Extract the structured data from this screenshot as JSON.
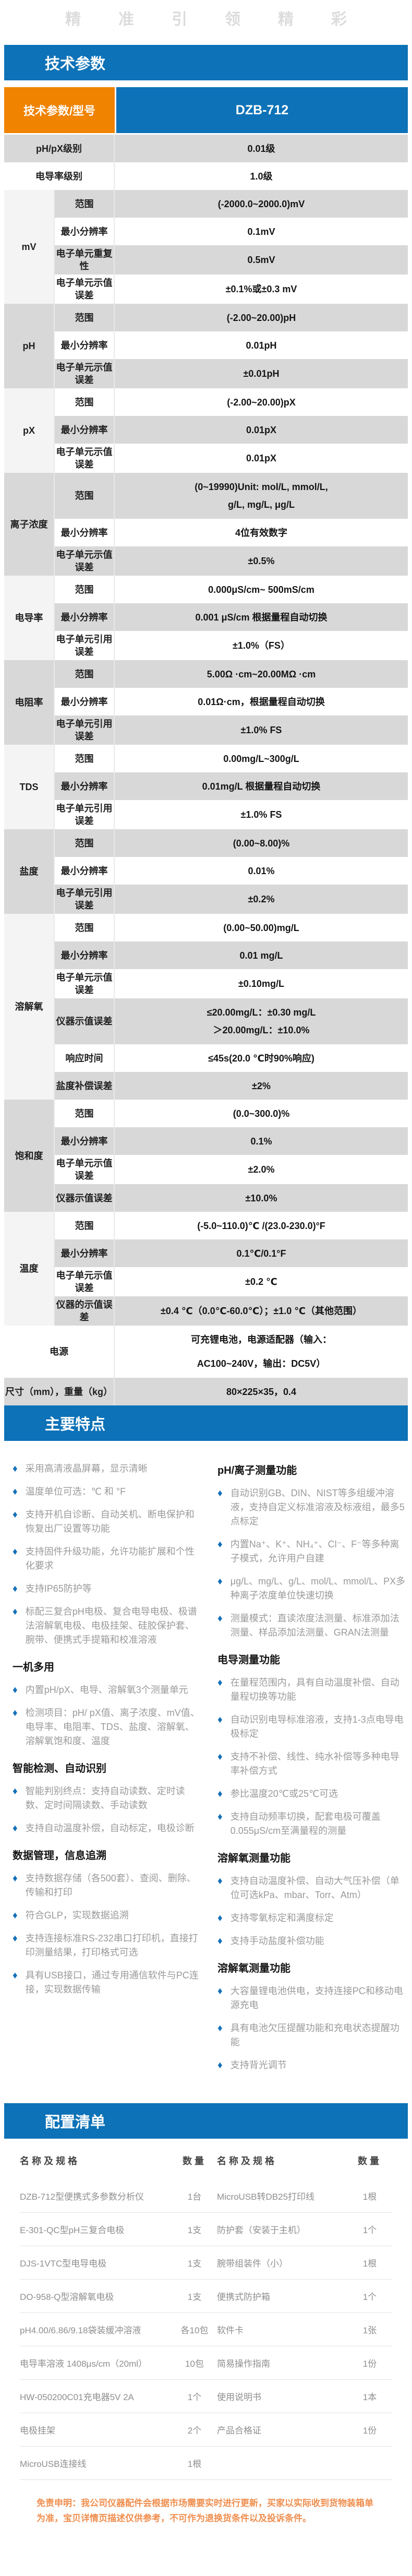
{
  "banner": "精准引领精彩",
  "sections": {
    "tech_params": "技术参数",
    "features": "主要特点",
    "config_list": "配置清单"
  },
  "spec_table": {
    "header": {
      "param_model": "技术参数/型号",
      "model": "DZB-712"
    },
    "simple_rows_top": [
      {
        "label": "pH/pX级别",
        "value": "0.01级"
      },
      {
        "label": "电导率级别",
        "value": "1.0级"
      }
    ],
    "groups": [
      {
        "name": "mV",
        "rows": [
          [
            "范围",
            "(-2000.0~2000.0)mV"
          ],
          [
            "最小分辨率",
            "0.1mV"
          ],
          [
            "电子单元重复性",
            "0.5mV"
          ],
          [
            "电子单元示值误差",
            "±0.1%或±0.3 mV"
          ]
        ]
      },
      {
        "name": "pH",
        "rows": [
          [
            "范围",
            "(-2.00~20.00)pH"
          ],
          [
            "最小分辨率",
            "0.01pH"
          ],
          [
            "电子单元示值误差",
            "±0.01pH"
          ]
        ]
      },
      {
        "name": "pX",
        "rows": [
          [
            "范围",
            "(-2.00~20.00)pX"
          ],
          [
            "最小分辨率",
            "0.01pX"
          ],
          [
            "电子单元示值误差",
            "0.01pX"
          ]
        ]
      },
      {
        "name": "离子浓度",
        "rows": [
          [
            "范围",
            "(0~19990)Unit: mol/L, mmol/L,\ng/L, mg/L, μg/L"
          ],
          [
            "最小分辨率",
            "4位有效数字"
          ],
          [
            "电子单元示值误差",
            "±0.5%"
          ]
        ]
      },
      {
        "name": "电导率",
        "rows": [
          [
            "范围",
            "0.000μS/cm~ 500mS/cm"
          ],
          [
            "最小分辨率",
            "0.001 μS/cm 根据量程自动切换"
          ],
          [
            "电子单元引用误差",
            "±1.0%（FS）"
          ]
        ]
      },
      {
        "name": "电阻率",
        "rows": [
          [
            "范围",
            "5.00Ω ·cm~20.00MΩ ·cm"
          ],
          [
            "最小分辨率",
            "0.01Ω·cm，根据量程自动切换"
          ],
          [
            "电子单元引用误差",
            "±1.0% FS"
          ]
        ]
      },
      {
        "name": "TDS",
        "rows": [
          [
            "范围",
            "0.00mg/L~300g/L"
          ],
          [
            "最小分辨率",
            "0.01mg/L 根据量程自动切换"
          ],
          [
            "电子单元引用误差",
            "±1.0% FS"
          ]
        ]
      },
      {
        "name": "盐度",
        "rows": [
          [
            "范围",
            "(0.00~8.00)%"
          ],
          [
            "最小分辨率",
            "0.01%"
          ],
          [
            "电子单元引用误差",
            "±0.2%"
          ]
        ]
      },
      {
        "name": "溶解氧",
        "rows": [
          [
            "范围",
            "(0.00~50.00)mg/L"
          ],
          [
            "最小分辨率",
            "0.01 mg/L"
          ],
          [
            "电子单元示值误差",
            "±0.10mg/L"
          ],
          [
            "仪器示值误差",
            "≤20.00mg/L：±0.30 mg/L\n＞20.00mg/L：±10.0%"
          ],
          [
            "响应时间",
            "≤45s(20.0 ℃时90%响应)"
          ],
          [
            "盐度补偿误差",
            "±2%"
          ]
        ]
      },
      {
        "name": "饱和度",
        "rows": [
          [
            "范围",
            "(0.0~300.0)%"
          ],
          [
            "最小分辨率",
            "0.1%"
          ],
          [
            "电子单元示值误差",
            "±2.0%"
          ],
          [
            "仪器示值误差",
            "±10.0%"
          ]
        ]
      },
      {
        "name": "温度",
        "rows": [
          [
            "范围",
            "(-5.0~110.0)℃ /(23.0-230.0)°F"
          ],
          [
            "最小分辨率",
            "0.1℃/0.1°F"
          ],
          [
            "电子单元示值误差",
            "±0.2 ℃"
          ],
          [
            "仪器的示值误差",
            "±0.4 ℃（0.0℃-60.0℃）；±1.0 ℃（其他范围）"
          ]
        ]
      }
    ],
    "simple_rows_bottom": [
      {
        "label": "电源",
        "value": "可充锂电池，电源适配器（输入：\nAC100~240V，输出：DC5V）"
      },
      {
        "label": "尺寸（mm），重量（kg）",
        "value": "80×225×35，0.4"
      }
    ]
  },
  "features": {
    "left": [
      {
        "type": "bullet",
        "text": "采用高清液晶屏幕，显示清晰"
      },
      {
        "type": "bullet",
        "text": "温度单位可选：℃ 和 °F"
      },
      {
        "type": "bullet",
        "text": "支持开机自诊断、自动关机、断电保护和恢复出厂设置等功能"
      },
      {
        "type": "bullet",
        "text": "支持固件升级功能，允许功能扩展和个性化要求"
      },
      {
        "type": "bullet",
        "text": "支持IP65防护等"
      },
      {
        "type": "bullet",
        "text": "标配三复合pH电极、复合电导电极、极谱法溶解氧电极、电极挂架、硅胶保护套、腕带、便携式手提箱和校准溶液"
      },
      {
        "type": "header",
        "text": "一机多用"
      },
      {
        "type": "bullet",
        "text": "内置pH/pX、电导、溶解氧3个测量单元"
      },
      {
        "type": "bullet",
        "text": "检测项目：pH/ pX值、离子浓度、mV值、电导率、电阻率、TDS、盐度、溶解氧、溶解氧饱和度、温度"
      },
      {
        "type": "header",
        "text": "智能检测、自动识别"
      },
      {
        "type": "bullet",
        "text": "智能判别终点：支持自动读数、定时读数、定时间隔读数、手动读数"
      },
      {
        "type": "bullet",
        "text": "支持自动温度补偿，自动标定，电极诊断"
      },
      {
        "type": "header",
        "text": "数据管理，信息追溯"
      },
      {
        "type": "bullet",
        "text": "支持数据存储（各500套）、查阅、删除、传输和打印"
      },
      {
        "type": "bullet",
        "text": "符合GLP，实现数据追溯"
      },
      {
        "type": "bullet",
        "text": "支持连接标准RS-232串口打印机，直接打印测量结果，打印格式可选"
      },
      {
        "type": "bullet",
        "text": "具有USB接口，通过专用通信软件与PC连接，实现数据传输"
      }
    ],
    "right": [
      {
        "type": "header",
        "text": "pH/离子测量功能"
      },
      {
        "type": "bullet",
        "text": "自动识别GB、DIN、NIST等多组缓冲溶液，支持自定义标准溶液及标液组，最多5点标定"
      },
      {
        "type": "bullet",
        "text": "内置Na⁺、K⁺、NH₄⁺、Cl⁻、F⁻等多种离子模式，允许用户自建"
      },
      {
        "type": "bullet",
        "text": "μg/L、mg/L、g/L、mol/L、mmol/L、PX多种离子浓度单位快速切换"
      },
      {
        "type": "bullet",
        "text": "测量模式：直读浓度法测量、标准添加法测量、样品添加法测量、GRAN法测量"
      },
      {
        "type": "header",
        "text": "电导测量功能"
      },
      {
        "type": "bullet",
        "text": "在量程范围内，具有自动温度补偿、自动量程切换等功能"
      },
      {
        "type": "bullet",
        "text": "自动识别电导标准溶液，支持1-3点电导电极标定"
      },
      {
        "type": "bullet",
        "text": "支持不补偿、线性、纯水补偿等多种电导率补偿方式"
      },
      {
        "type": "bullet",
        "text": "参比温度20℃或25℃可选"
      },
      {
        "type": "bullet",
        "text": "支持自动频率切换，配套电极可覆盖0.055μS/cm至满量程的测量"
      },
      {
        "type": "header",
        "text": "溶解氧测量功能"
      },
      {
        "type": "bullet",
        "text": "支持自动温度补偿、自动大气压补偿（单位可选kPa、mbar、Torr、Atm）"
      },
      {
        "type": "bullet",
        "text": "支持零氧标定和满度标定"
      },
      {
        "type": "bullet",
        "text": "支持手动盐度补偿功能"
      },
      {
        "type": "header",
        "text": "溶解氧测量功能"
      },
      {
        "type": "bullet",
        "text": "大容量锂电池供电，支持连接PC和移动电源充电"
      },
      {
        "type": "bullet",
        "text": "具有电池欠压提醒功能和充电状态提醒功能"
      },
      {
        "type": "bullet",
        "text": "支持背光调节"
      }
    ]
  },
  "config_table": {
    "headers": [
      "名称及规格",
      "数量",
      "名称及规格",
      "数量"
    ],
    "rows": [
      [
        "DZB-712型便携式多参数分析仪",
        "1台",
        "MicroUSB转DB25打印线",
        "1根"
      ],
      [
        "E-301-QC型pH三复合电极",
        "1支",
        "防护套（安装于主机）",
        "1个"
      ],
      [
        "DJS-1VTC型电导电极",
        "1支",
        "腕带组装件（小）",
        "1根"
      ],
      [
        "DO-958-Q型溶解氧电极",
        "1支",
        "便携式防护箱",
        "1个"
      ],
      [
        "pH4.00/6.86/9.18袋装缓冲溶液",
        "各10包",
        "软件卡",
        "1张"
      ],
      [
        "电导率溶液 1408μs/cm（20ml）",
        "10包",
        "简易操作指南",
        "1份"
      ],
      [
        "HW-050200C01充电器5V 2A",
        "1个",
        "使用说明书",
        "1本"
      ],
      [
        "电极挂架",
        "2个",
        "产品合格证",
        "1份"
      ],
      [
        "MicroUSB连接线",
        "1根",
        "",
        ""
      ]
    ]
  },
  "disclaimer": "免责申明：我公司仪器配件会根据市场需要实时进行更新，买家以实际收到货物装箱单为准，宝贝详情页描述仅供参考，不可作为退换货条件以及投诉条件。",
  "colors": {
    "accent_blue": "#0d72b7",
    "accent_orange": "#f08300",
    "row_gray": "#d8d8d8",
    "group_light": "#f4f4f4",
    "disclaimer_orange": "#ef8e4e"
  }
}
